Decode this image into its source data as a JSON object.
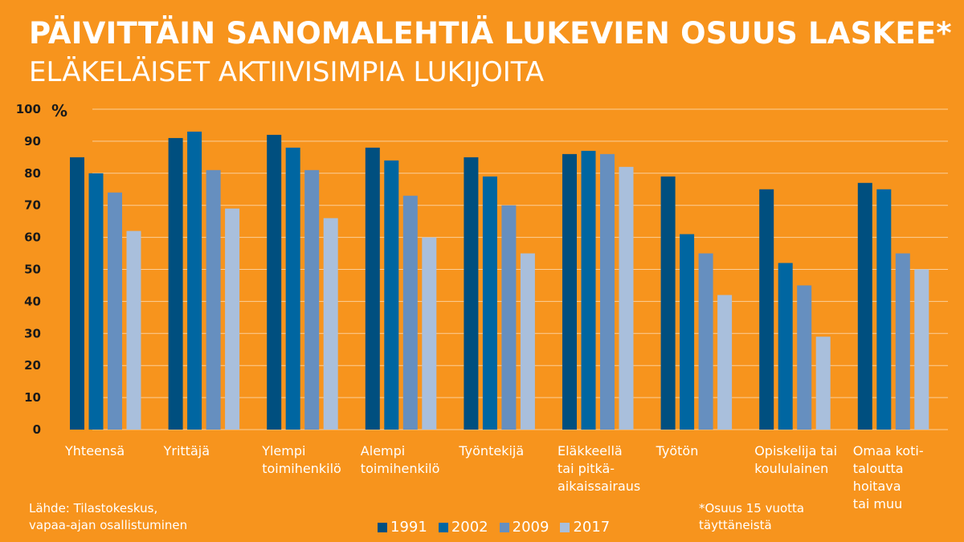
{
  "header": {
    "title": "PÄIVITTÄIN SANOMALEHTIÄ LUKEVIEN OSUUS LASKEE*",
    "subtitle": "ELÄKELÄISET AKTIIVISIMPIA LUKIJOITA"
  },
  "chart_data": {
    "type": "bar",
    "title": "PÄIVITTÄIN SANOMALEHTIÄ LUKEVIEN OSUUS LASKEE*",
    "ylabel": "%",
    "ylim": [
      0,
      100
    ],
    "yticks": [
      0,
      10,
      20,
      30,
      40,
      50,
      60,
      70,
      80,
      90,
      100
    ],
    "categories": [
      [
        "Yhteensä"
      ],
      [
        "Yrittäjä"
      ],
      [
        "Ylempi",
        "toimihenkilö"
      ],
      [
        "Alempi",
        "toimihenkilö"
      ],
      [
        "Työntekijä"
      ],
      [
        "Eläkkeellä",
        "tai pitkä-",
        "aikaissairaus"
      ],
      [
        "Työtön"
      ],
      [
        "Opiskelija tai",
        "koululainen"
      ],
      [
        "Omaa koti-",
        "taloutta",
        "hoitava",
        "tai muu"
      ]
    ],
    "series": [
      {
        "name": "1991",
        "color": "#004F7F",
        "values": [
          85,
          91,
          92,
          88,
          85,
          86,
          79,
          75,
          77
        ]
      },
      {
        "name": "2002",
        "color": "#0066A1",
        "values": [
          80,
          93,
          88,
          84,
          79,
          87,
          61,
          52,
          75
        ]
      },
      {
        "name": "2009",
        "color": "#668FBF",
        "values": [
          74,
          81,
          81,
          73,
          70,
          86,
          55,
          45,
          55
        ]
      },
      {
        "name": "2017",
        "color": "#A9BFDC",
        "values": [
          62,
          69,
          66,
          60,
          55,
          82,
          42,
          29,
          50
        ]
      }
    ]
  },
  "footer": {
    "source": [
      "Lähde: Tilastokeskus,",
      "vapaa-ajan osallistuminen"
    ],
    "note": [
      "*Osuus 15 vuotta",
      "täyttäneistä"
    ]
  }
}
